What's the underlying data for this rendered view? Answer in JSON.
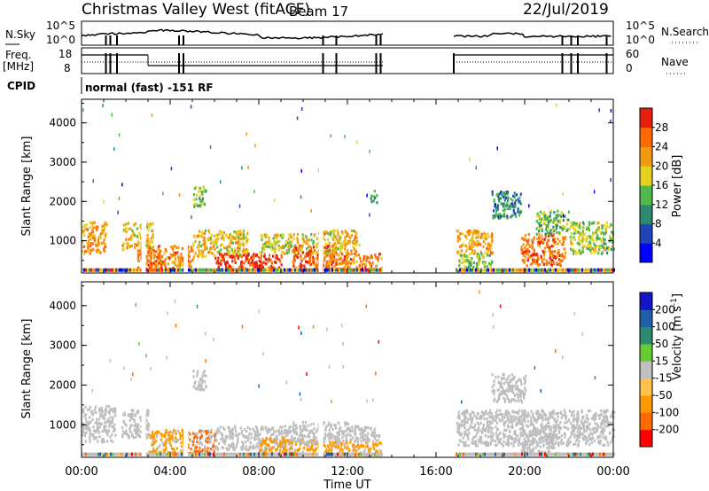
{
  "header": {
    "station": "Christmas Valley West (fitACF)",
    "beam": "Beam 17",
    "date": "22/Jul/2019"
  },
  "noise_panel": {
    "left_label": "N.Sky",
    "left_ticks": [
      "10^5",
      "10^0"
    ],
    "right_label": "N.Search",
    "right_ticks": [
      "10^5",
      "10^0"
    ]
  },
  "freq_panel": {
    "left_label_line1": "Freq.",
    "left_label_line2": "[MHz]",
    "left_ticks": [
      "18",
      "8"
    ],
    "right_label": "Nave",
    "right_ticks": [
      "60",
      "0"
    ]
  },
  "cpid": {
    "label": "CPID",
    "text": "normal (fast) -151 RF"
  },
  "colors": {
    "power": [
      "#0000ff",
      "#2244bb",
      "#2d8a6e",
      "#52b84a",
      "#e5d21c",
      "#f39a14",
      "#ff6a00",
      "#e81e10"
    ],
    "velocity": [
      "#ff0000",
      "#ff6a00",
      "#ff9900",
      "#ffc24d",
      "#c0c0c0",
      "#66cc33",
      "#2d8a6e",
      "#1f5fa8",
      "#1414c8"
    ],
    "ground_scatter": "#bebebe"
  },
  "chart_data": [
    {
      "type": "heatmap",
      "panel": "Power",
      "xlabel": "",
      "ylabel": "Slant Range [km]",
      "xlim": [
        0,
        24
      ],
      "ylim": [
        180,
        4600
      ],
      "yticks": [
        "1000",
        "2000",
        "3000",
        "4000"
      ],
      "colorbar_label": "Power [dB]",
      "colorbar_range": [
        0,
        32
      ],
      "colorbar_ticks": [
        "4",
        "8",
        "12",
        "16",
        "20",
        "24",
        "28"
      ],
      "regions": [
        {
          "t": [
            0.0,
            1.1
          ],
          "r": [
            700,
            1500
          ],
          "level": 22
        },
        {
          "t": [
            1.8,
            3.2
          ],
          "r": [
            800,
            1500
          ],
          "level": 20
        },
        {
          "t": [
            2.5,
            3.6
          ],
          "r": [
            300,
            800
          ],
          "level": 26
        },
        {
          "t": [
            3.0,
            5.0
          ],
          "r": [
            300,
            900
          ],
          "level": 24
        },
        {
          "t": [
            5.0,
            7.5
          ],
          "r": [
            600,
            1300
          ],
          "level": 20
        },
        {
          "t": [
            6.0,
            9.0
          ],
          "r": [
            300,
            700
          ],
          "level": 29
        },
        {
          "t": [
            8.0,
            10.5
          ],
          "r": [
            700,
            1200
          ],
          "level": 18
        },
        {
          "t": [
            9.5,
            11.5
          ],
          "r": [
            300,
            900
          ],
          "level": 27
        },
        {
          "t": [
            10.5,
            12.5
          ],
          "r": [
            700,
            1300
          ],
          "level": 20
        },
        {
          "t": [
            11.0,
            13.5
          ],
          "r": [
            300,
            700
          ],
          "level": 24
        },
        {
          "t": [
            5.0,
            5.6
          ],
          "r": [
            1900,
            2400
          ],
          "level": 14
        },
        {
          "t": [
            13.0,
            13.3
          ],
          "r": [
            2000,
            2300
          ],
          "level": 11
        },
        {
          "t": [
            16.9,
            18.5
          ],
          "r": [
            700,
            1300
          ],
          "level": 21
        },
        {
          "t": [
            17.0,
            18.5
          ],
          "r": [
            300,
            700
          ],
          "level": 15
        },
        {
          "t": [
            18.5,
            19.8
          ],
          "r": [
            1600,
            2300
          ],
          "level": 10
        },
        {
          "t": [
            19.8,
            21.8
          ],
          "r": [
            400,
            1200
          ],
          "level": 25
        },
        {
          "t": [
            20.5,
            22.0
          ],
          "r": [
            1200,
            1800
          ],
          "level": 14
        },
        {
          "t": [
            22.0,
            24.0
          ],
          "r": [
            700,
            1500
          ],
          "level": 16
        }
      ]
    },
    {
      "type": "heatmap",
      "panel": "Velocity",
      "xlabel": "Time UT",
      "ylabel": "Slant Range [km]",
      "xlim": [
        0,
        24
      ],
      "ylim": [
        180,
        4600
      ],
      "yticks": [
        "1000",
        "2000",
        "3000",
        "4000"
      ],
      "xticks": [
        "00:00",
        "04:00",
        "08:00",
        "12:00",
        "16:00",
        "20:00",
        "00:00"
      ],
      "colorbar_label": "Velocity [m s^-1]",
      "colorbar_ticks": [
        "-200",
        "-100",
        "-50",
        "-15",
        "15",
        "50",
        "100",
        "200"
      ],
      "regions": [
        {
          "t": [
            0.0,
            1.5
          ],
          "r": [
            600,
            1500
          ],
          "level": "gs"
        },
        {
          "t": [
            1.8,
            3.0
          ],
          "r": [
            700,
            1400
          ],
          "level": "gs"
        },
        {
          "t": [
            3.0,
            4.8
          ],
          "r": [
            300,
            900
          ],
          "level": -60
        },
        {
          "t": [
            4.8,
            6.0
          ],
          "r": [
            300,
            900
          ],
          "level": -80
        },
        {
          "t": [
            6.0,
            9.5
          ],
          "r": [
            400,
            1000
          ],
          "level": "gs"
        },
        {
          "t": [
            8.0,
            10.5
          ],
          "r": [
            300,
            700
          ],
          "level": -40
        },
        {
          "t": [
            9.5,
            12.0
          ],
          "r": [
            500,
            1100
          ],
          "level": "gs"
        },
        {
          "t": [
            10.5,
            13.5
          ],
          "r": [
            250,
            600
          ],
          "level": -70
        },
        {
          "t": [
            12.0,
            13.5
          ],
          "r": [
            600,
            1000
          ],
          "level": "gs"
        },
        {
          "t": [
            5.0,
            5.6
          ],
          "r": [
            1900,
            2400
          ],
          "level": "gs"
        },
        {
          "t": [
            16.9,
            24.0
          ],
          "r": [
            500,
            1400
          ],
          "level": "gs"
        },
        {
          "t": [
            18.5,
            20.0
          ],
          "r": [
            1600,
            2300
          ],
          "level": "gs"
        },
        {
          "t": [
            19.8,
            21.5
          ],
          "r": [
            300,
            900
          ],
          "level": "gs"
        }
      ]
    }
  ]
}
